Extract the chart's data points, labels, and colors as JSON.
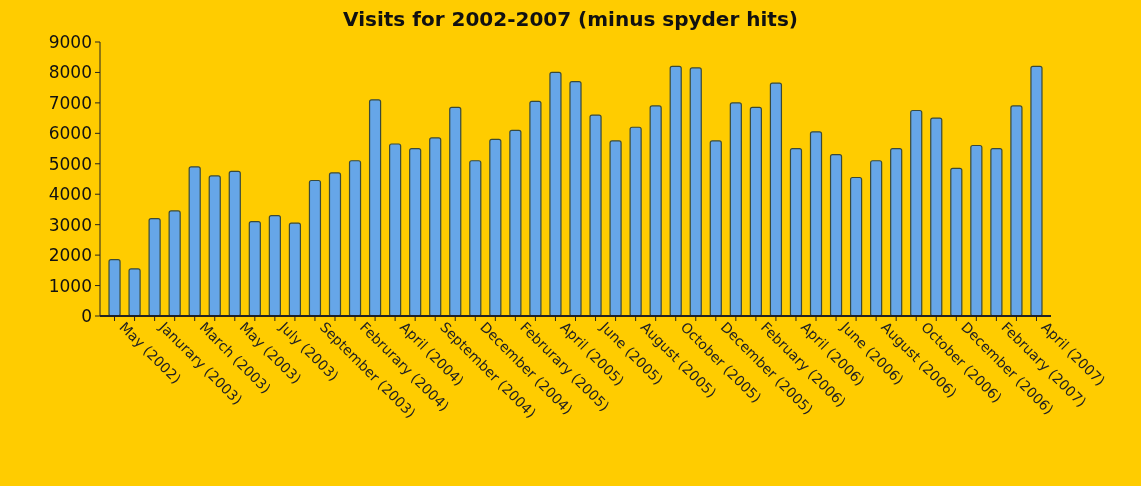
{
  "chart_data": {
    "type": "bar",
    "title": "Visits for 2002-2007 (minus spyder hits)",
    "categories": [
      "May (2002)",
      null,
      "Janurary (2003)",
      null,
      "March (2003)",
      null,
      "May (2003)",
      null,
      "July (2003)",
      null,
      "September (2003)",
      null,
      "Februrary (2004)",
      null,
      "April (2004)",
      null,
      "September (2004)",
      null,
      "December (2004)",
      null,
      "Februrary (2005)",
      null,
      "April (2005)",
      null,
      "June (2005)",
      null,
      "August (2005)",
      null,
      "October (2005)",
      null,
      "December (2005)",
      null,
      "February (2006)",
      null,
      "April (2006)",
      null,
      "June (2006)",
      null,
      "August (2006)",
      null,
      "October (2006)",
      null,
      "December (2006)",
      null,
      "February (2007)",
      null,
      "April (2007)"
    ],
    "values": [
      1850,
      1550,
      3200,
      3450,
      4900,
      4600,
      4750,
      3100,
      3300,
      3050,
      4450,
      4700,
      5100,
      7100,
      5650,
      5500,
      5850,
      6850,
      5100,
      5800,
      6100,
      7050,
      8000,
      7700,
      6600,
      5750,
      6200,
      6900,
      8200,
      8150,
      5750,
      7000,
      6850,
      7650,
      5500,
      6050,
      5300,
      4550,
      5100,
      5500,
      6750,
      6500,
      4850,
      5600,
      5500,
      6900,
      8200
    ],
    "color": "#66a6e8",
    "ylim": [
      0,
      9000
    ],
    "yticks": [
      0,
      1000,
      2000,
      3000,
      4000,
      5000,
      6000,
      7000,
      8000,
      9000
    ],
    "grid": false
  }
}
